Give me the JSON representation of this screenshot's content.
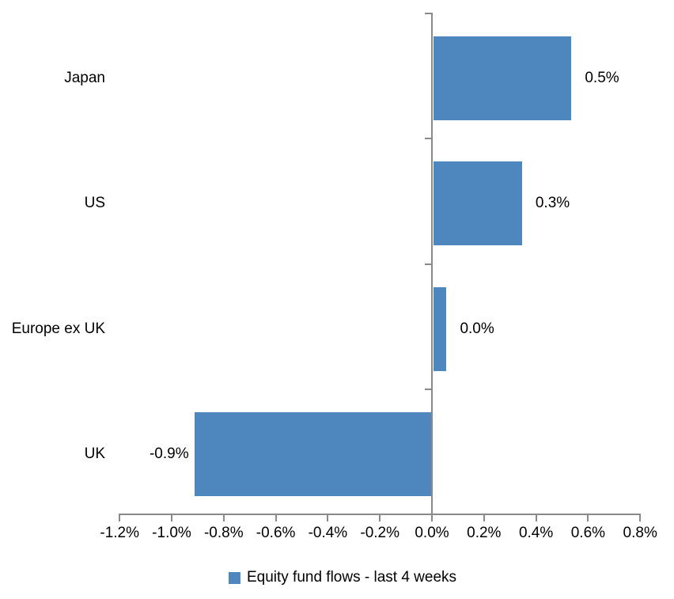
{
  "chart_data": {
    "type": "bar",
    "orientation": "horizontal",
    "title": "",
    "categories": [
      "Japan",
      "US",
      "Europe ex UK",
      "UK"
    ],
    "values": [
      0.5,
      0.3,
      0.0,
      -0.9
    ],
    "value_labels": [
      "0.5%",
      "0.3%",
      "0.0%",
      "-0.9%"
    ],
    "bar_render_values": [
      0.53,
      0.34,
      0.05,
      -0.91
    ],
    "unit": "%",
    "xlim": [
      -1.2,
      0.8
    ],
    "x_tick_step": 0.2,
    "x_ticks": [
      -1.2,
      -1.0,
      -0.8,
      -0.6,
      -0.4,
      -0.2,
      0.0,
      0.2,
      0.4,
      0.6,
      0.8
    ],
    "x_tick_labels": [
      "-1.2%",
      "-1.0%",
      "-0.8%",
      "-0.6%",
      "-0.4%",
      "-0.2%",
      "0.0%",
      "0.2%",
      "0.4%",
      "0.6%",
      "0.8%"
    ],
    "grid": false,
    "ylabel": "",
    "xlabel": "",
    "legend_position": "bottom-center",
    "legend": [
      {
        "label": "Equity fund flows - last 4 weeks",
        "color": "#4e86be"
      }
    ],
    "colors": {
      "bar": "#4e86be",
      "axis": "#8a8a8a",
      "text": "#000000",
      "background": "#ffffff"
    }
  }
}
